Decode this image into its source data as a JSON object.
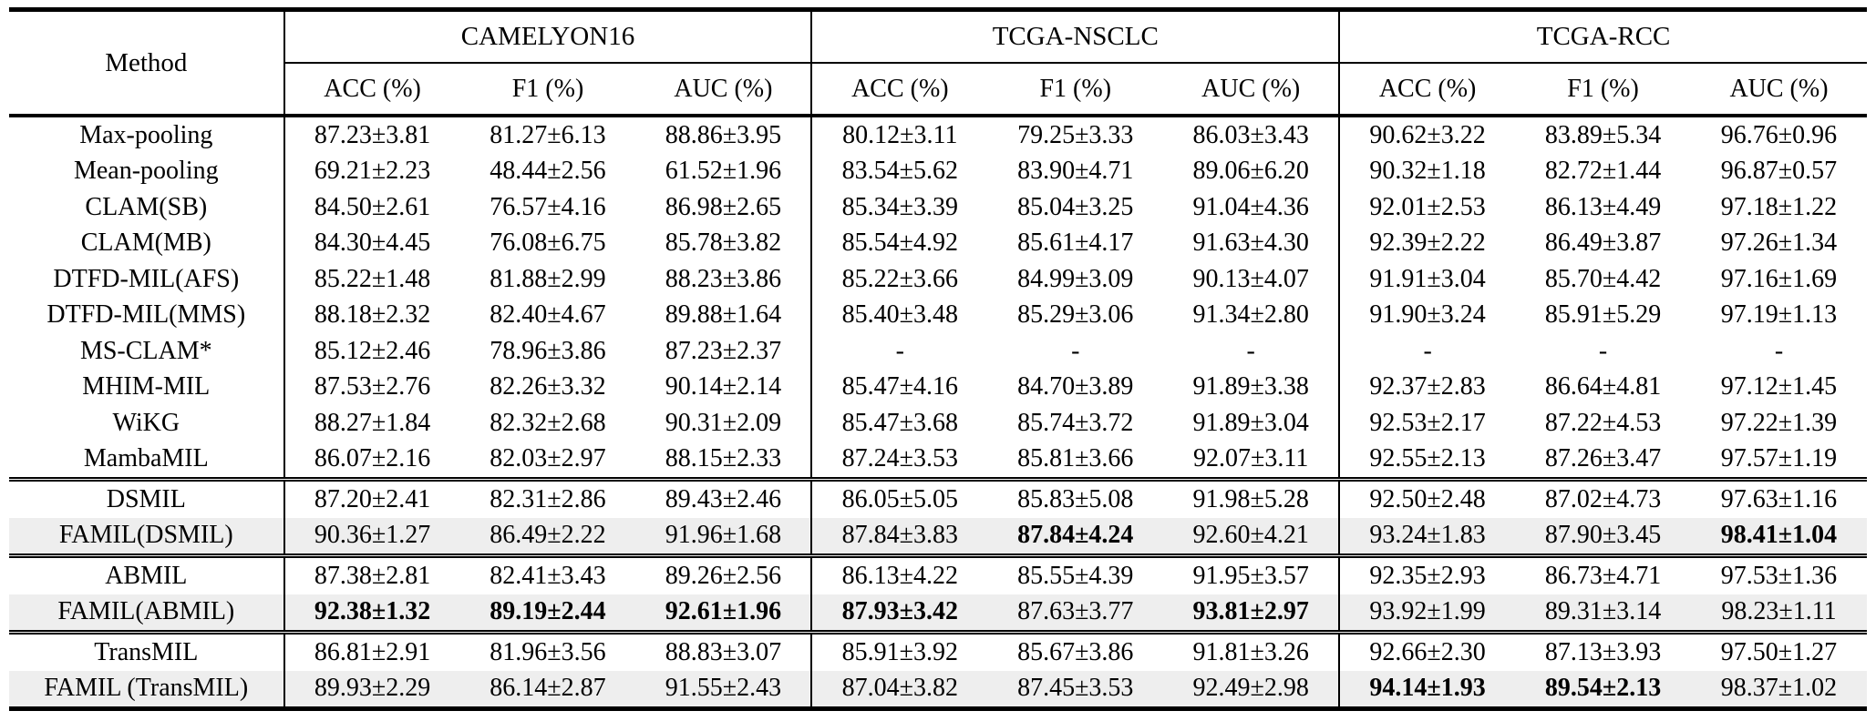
{
  "colors": {
    "background": "#ffffff",
    "text": "#000000",
    "highlight_row": "#eeeeee",
    "rule": "#000000"
  },
  "table": {
    "method_header": "Method",
    "groups": [
      {
        "label": "CAMELYON16",
        "cols": [
          "ACC (%)",
          "F1 (%)",
          "AUC (%)"
        ]
      },
      {
        "label": "TCGA-NSCLC",
        "cols": [
          "ACC (%)",
          "F1 (%)",
          "AUC (%)"
        ]
      },
      {
        "label": "TCGA-RCC",
        "cols": [
          "ACC (%)",
          "F1 (%)",
          "AUC (%)"
        ]
      }
    ],
    "sections": [
      {
        "rows": [
          {
            "method": "Max-pooling",
            "values": [
              "87.23±3.81",
              "81.27±6.13",
              "88.86±3.95",
              "80.12±3.11",
              "79.25±3.33",
              "86.03±3.43",
              "90.62±3.22",
              "83.89±5.34",
              "96.76±0.96"
            ],
            "bold": [],
            "highlight": false
          },
          {
            "method": "Mean-pooling",
            "values": [
              "69.21±2.23",
              "48.44±2.56",
              "61.52±1.96",
              "83.54±5.62",
              "83.90±4.71",
              "89.06±6.20",
              "90.32±1.18",
              "82.72±1.44",
              "96.87±0.57"
            ],
            "bold": [],
            "highlight": false
          },
          {
            "method": "CLAM(SB)",
            "values": [
              "84.50±2.61",
              "76.57±4.16",
              "86.98±2.65",
              "85.34±3.39",
              "85.04±3.25",
              "91.04±4.36",
              "92.01±2.53",
              "86.13±4.49",
              "97.18±1.22"
            ],
            "bold": [],
            "highlight": false
          },
          {
            "method": "CLAM(MB)",
            "values": [
              "84.30±4.45",
              "76.08±6.75",
              "85.78±3.82",
              "85.54±4.92",
              "85.61±4.17",
              "91.63±4.30",
              "92.39±2.22",
              "86.49±3.87",
              "97.26±1.34"
            ],
            "bold": [],
            "highlight": false
          },
          {
            "method": "DTFD-MIL(AFS)",
            "values": [
              "85.22±1.48",
              "81.88±2.99",
              "88.23±3.86",
              "85.22±3.66",
              "84.99±3.09",
              "90.13±4.07",
              "91.91±3.04",
              "85.70±4.42",
              "97.16±1.69"
            ],
            "bold": [],
            "highlight": false
          },
          {
            "method": "DTFD-MIL(MMS)",
            "values": [
              "88.18±2.32",
              "82.40±4.67",
              "89.88±1.64",
              "85.40±3.48",
              "85.29±3.06",
              "91.34±2.80",
              "91.90±3.24",
              "85.91±5.29",
              "97.19±1.13"
            ],
            "bold": [],
            "highlight": false
          },
          {
            "method": "MS-CLAM*",
            "values": [
              "85.12±2.46",
              "78.96±3.86",
              "87.23±2.37",
              "-",
              "-",
              "-",
              "-",
              "-",
              "-"
            ],
            "bold": [],
            "highlight": false
          },
          {
            "method": "MHIM-MIL",
            "values": [
              "87.53±2.76",
              "82.26±3.32",
              "90.14±2.14",
              "85.47±4.16",
              "84.70±3.89",
              "91.89±3.38",
              "92.37±2.83",
              "86.64±4.81",
              "97.12±1.45"
            ],
            "bold": [],
            "highlight": false
          },
          {
            "method": "WiKG",
            "values": [
              "88.27±1.84",
              "82.32±2.68",
              "90.31±2.09",
              "85.47±3.68",
              "85.74±3.72",
              "91.89±3.04",
              "92.53±2.17",
              "87.22±4.53",
              "97.22±1.39"
            ],
            "bold": [],
            "highlight": false
          },
          {
            "method": "MambaMIL",
            "values": [
              "86.07±2.16",
              "82.03±2.97",
              "88.15±2.33",
              "87.24±3.53",
              "85.81±3.66",
              "92.07±3.11",
              "92.55±2.13",
              "87.26±3.47",
              "97.57±1.19"
            ],
            "bold": [],
            "highlight": false
          }
        ]
      },
      {
        "rows": [
          {
            "method": "DSMIL",
            "values": [
              "87.20±2.41",
              "82.31±2.86",
              "89.43±2.46",
              "86.05±5.05",
              "85.83±5.08",
              "91.98±5.28",
              "92.50±2.48",
              "87.02±4.73",
              "97.63±1.16"
            ],
            "bold": [],
            "highlight": false
          },
          {
            "method": "FAMIL(DSMIL)",
            "values": [
              "90.36±1.27",
              "86.49±2.22",
              "91.96±1.68",
              "87.84±3.83",
              "87.84±4.24",
              "92.60±4.21",
              "93.24±1.83",
              "87.90±3.45",
              "98.41±1.04"
            ],
            "bold": [
              4,
              8
            ],
            "highlight": true
          }
        ]
      },
      {
        "rows": [
          {
            "method": "ABMIL",
            "values": [
              "87.38±2.81",
              "82.41±3.43",
              "89.26±2.56",
              "86.13±4.22",
              "85.55±4.39",
              "91.95±3.57",
              "92.35±2.93",
              "86.73±4.71",
              "97.53±1.36"
            ],
            "bold": [],
            "highlight": false
          },
          {
            "method": "FAMIL(ABMIL)",
            "values": [
              "92.38±1.32",
              "89.19±2.44",
              "92.61±1.96",
              "87.93±3.42",
              "87.63±3.77",
              "93.81±2.97",
              "93.92±1.99",
              "89.31±3.14",
              "98.23±1.11"
            ],
            "bold": [
              0,
              1,
              2,
              3,
              5
            ],
            "highlight": true
          }
        ]
      },
      {
        "rows": [
          {
            "method": "TransMIL",
            "values": [
              "86.81±2.91",
              "81.96±3.56",
              "88.83±3.07",
              "85.91±3.92",
              "85.67±3.86",
              "91.81±3.26",
              "92.66±2.30",
              "87.13±3.93",
              "97.50±1.27"
            ],
            "bold": [],
            "highlight": false
          },
          {
            "method": "FAMIL (TransMIL)",
            "values": [
              "89.93±2.29",
              "86.14±2.87",
              "91.55±2.43",
              "87.04±3.82",
              "87.45±3.53",
              "92.49±2.98",
              "94.14±1.93",
              "89.54±2.13",
              "98.37±1.02"
            ],
            "bold": [
              6,
              7
            ],
            "highlight": true
          }
        ]
      }
    ]
  }
}
